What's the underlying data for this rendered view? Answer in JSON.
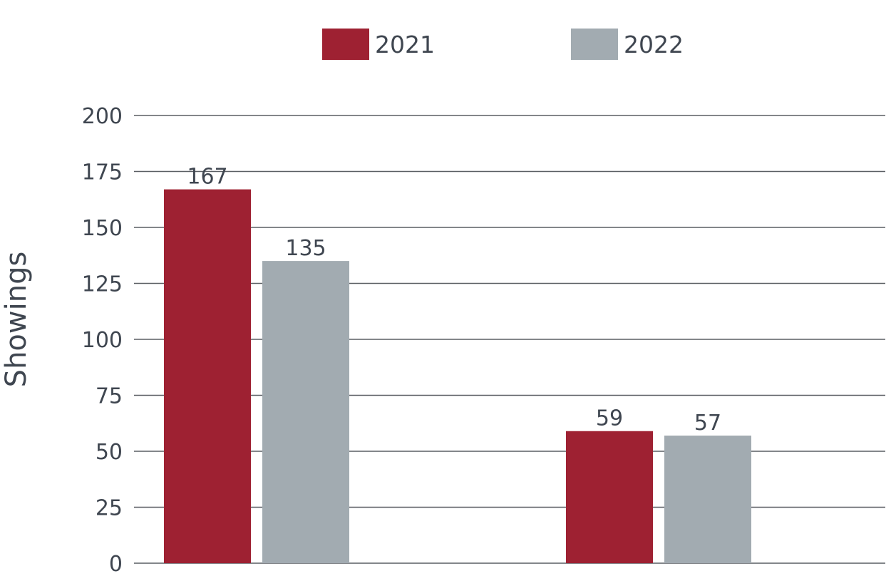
{
  "chart_data": {
    "type": "bar",
    "categories": [
      "",
      ""
    ],
    "series": [
      {
        "name": "2021",
        "values": [
          167,
          59
        ],
        "color": "#9e2132"
      },
      {
        "name": "2022",
        "values": [
          135,
          57
        ],
        "color": "#a2abb1"
      }
    ],
    "data_labels": [
      [
        "167",
        "59"
      ],
      [
        "135",
        "57"
      ]
    ],
    "title": "",
    "xlabel": "",
    "ylabel": "Showings",
    "ylim": [
      0,
      200
    ],
    "yticks": [
      0,
      25,
      50,
      75,
      100,
      125,
      150,
      175,
      200
    ],
    "grid": true,
    "legend_position": "top-center"
  }
}
